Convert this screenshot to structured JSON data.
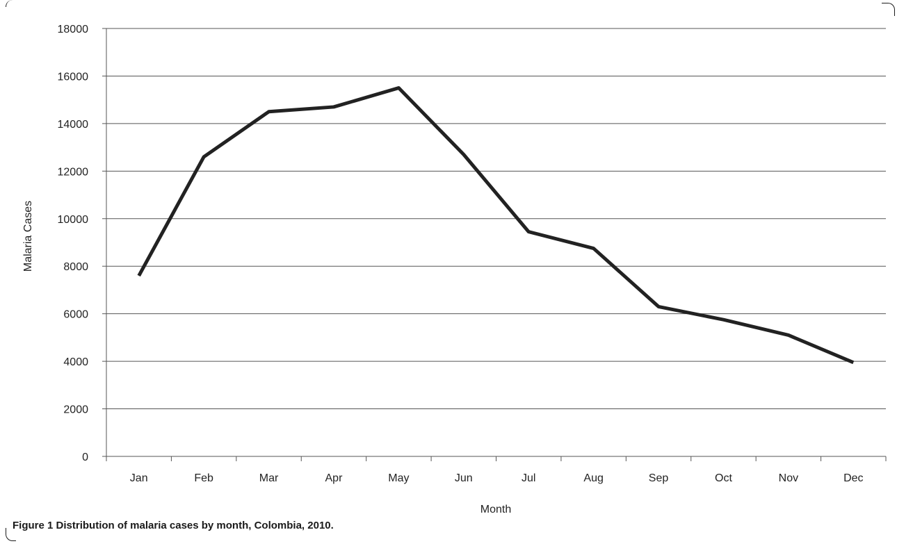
{
  "chart_data": {
    "type": "line",
    "categories": [
      "Jan",
      "Feb",
      "Mar",
      "Apr",
      "May",
      "Jun",
      "Jul",
      "Aug",
      "Sep",
      "Oct",
      "Nov",
      "Dec"
    ],
    "series": [
      {
        "values": [
          7600,
          12600,
          14500,
          14700,
          15500,
          12700,
          9450,
          8750,
          6300,
          5750,
          5100,
          3950
        ]
      }
    ],
    "xlabel": "Month",
    "ylabel": "Malaria Cases",
    "ylim": [
      0,
      18000
    ],
    "yticks": [
      0,
      2000,
      4000,
      6000,
      8000,
      10000,
      12000,
      14000,
      16000,
      18000
    ],
    "grid": true,
    "line_color": "#222222"
  },
  "caption": {
    "label": "Figure 1",
    "text": "Distribution of malaria cases by month, Colombia, 2010."
  }
}
